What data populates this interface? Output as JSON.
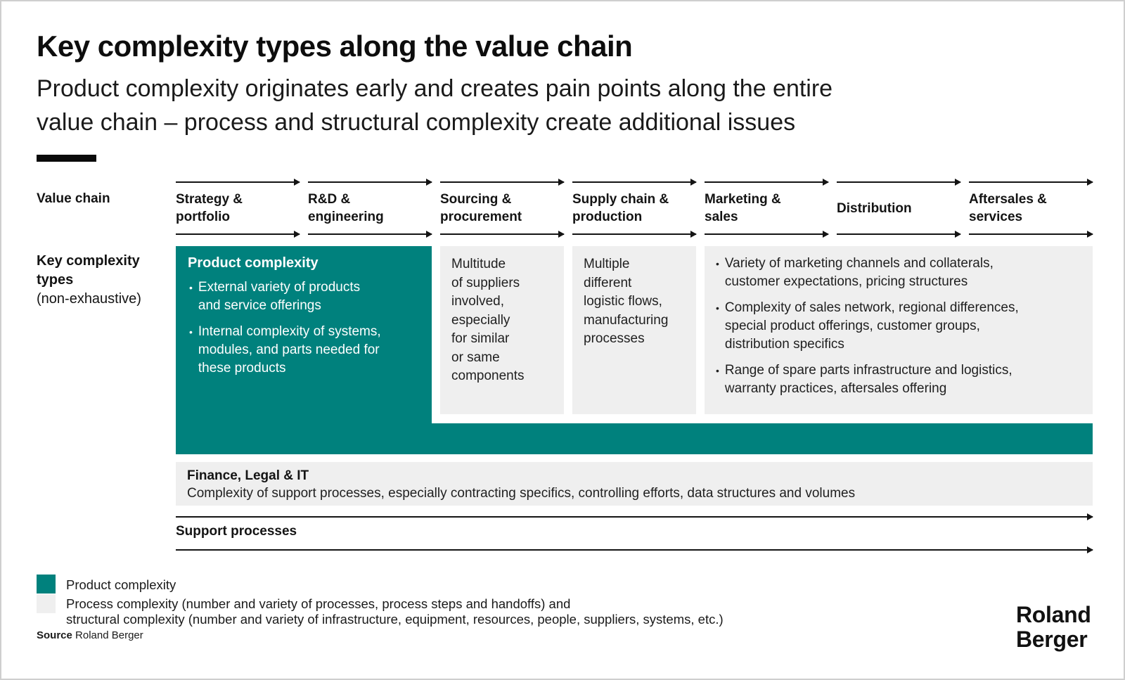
{
  "header": {
    "title": "Key complexity types along the value chain",
    "subtitle": "Product complexity originates early and creates pain points along the entire\nvalue chain – process and structural complexity create additional issues"
  },
  "value_chain": {
    "label": "Value chain",
    "stages": [
      "Strategy &\nportfolio",
      "R&D &\nengineering",
      "Sourcing &\nprocurement",
      "Supply chain &\nproduction",
      "Marketing &\nsales",
      "Distribution",
      "Aftersales &\nservices"
    ]
  },
  "left_label": {
    "title": "Key complexity\ntypes",
    "note": "(non-exhaustive)"
  },
  "product_box": {
    "title": "Product complexity",
    "bullet1": "External variety of products\nand service offerings",
    "bullet2": "Internal complexity of systems,\nmodules, and parts needed for\nthese products"
  },
  "process_boxes": {
    "sourcing": "Multitude\nof suppliers\ninvolved,\nespecially\nfor similar\nor same\ncomponents",
    "supply_chain": "Multiple\ndifferent\nlogistic flows,\nmanufacturing\nprocesses",
    "downstream_bullet1": "Variety of marketing channels and collaterals,\ncustomer expectations, pricing structures",
    "downstream_bullet2": "Complexity of sales network, regional differences,\nspecial product offerings, customer groups,\ndistribution specifics",
    "downstream_bullet3": "Range of spare parts infrastructure and logistics,\nwarranty practices, aftersales offering"
  },
  "finance_box": {
    "title": "Finance, Legal & IT",
    "text": "Complexity of support processes, especially contracting specifics, controlling efforts, data structures and volumes"
  },
  "support_processes": {
    "label": "Support processes"
  },
  "legend": {
    "product": "Product complexity",
    "process": "Process complexity (number and variety of processes, process steps and handoffs) and\nstructural complexity (number and variety of infrastructure, equipment, resources, people, suppliers, systems, etc.)"
  },
  "source": {
    "label": "Source",
    "text": "Roland Berger"
  },
  "logo": {
    "line1": "Roland",
    "line2": "Berger"
  },
  "colors": {
    "teal": "#00817D",
    "light_gray": "#EFEFEF",
    "arrow_black": "#141414"
  }
}
